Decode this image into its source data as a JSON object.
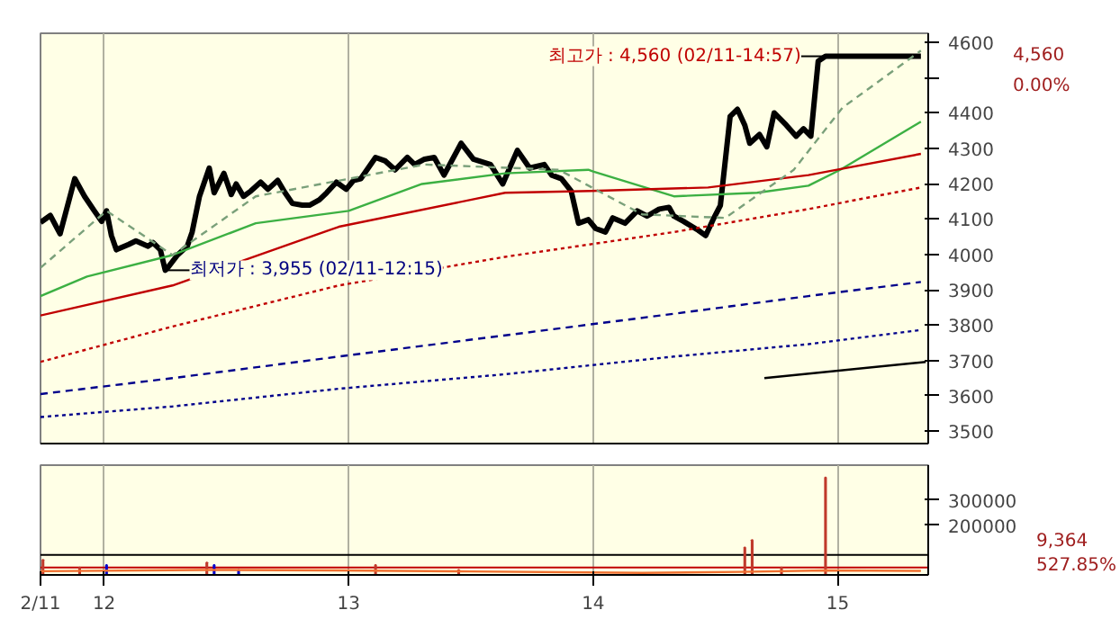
{
  "chart_data": [
    {
      "type": "line",
      "xlim": [
        11.74,
        15.37
      ],
      "ylim": [
        3465,
        4625
      ],
      "tick_labels": "y",
      "grid": "x",
      "xticks": [
        12,
        13,
        14,
        15
      ],
      "yticks": [
        3500,
        3600,
        3700,
        3800,
        3900,
        4000,
        4100,
        4200,
        4300,
        4400,
        {
          "value": 4500,
          "label": null
        },
        4600
      ],
      "series": [
        {
          "color": "#000000",
          "line_style": "solid",
          "x": [
            11.74,
            11.78,
            11.82,
            11.88,
            11.92,
            11.96,
            11.99,
            12.01,
            12.03,
            12.05,
            12.1,
            12.13,
            12.18,
            12.2,
            12.23,
            12.25,
            12.26,
            12.3,
            12.34,
            12.36,
            12.39,
            12.43,
            12.45,
            12.49,
            12.52,
            12.54,
            12.57,
            12.6,
            12.64,
            12.67,
            12.71,
            12.74,
            12.77,
            12.81,
            12.84,
            12.88,
            12.91,
            12.95,
            12.99,
            13.02,
            13.05,
            13.11,
            13.15,
            13.19,
            13.24,
            13.27,
            13.31,
            13.35,
            13.39,
            13.46,
            13.51,
            13.58,
            13.63,
            13.69,
            13.74,
            13.8,
            13.83,
            13.87,
            13.91,
            13.94,
            13.98,
            14.01,
            14.05,
            14.08,
            14.13,
            14.18,
            14.22,
            14.27,
            14.31,
            14.33,
            14.37,
            14.43,
            14.46,
            14.49,
            14.52,
            14.56,
            14.59,
            14.62,
            14.64,
            14.68,
            14.71,
            14.74,
            14.79,
            14.83,
            14.86,
            14.89,
            14.92,
            14.95,
            15.34
          ],
          "values": [
            4090,
            4110,
            4058,
            4214,
            4164,
            4123,
            4093,
            4123,
            4053,
            4013,
            4028,
            4038,
            4023,
            4033,
            4013,
            3955,
            3962,
            3998,
            4023,
            4063,
            4164,
            4244,
            4174,
            4229,
            4169,
            4199,
            4164,
            4179,
            4204,
            4184,
            4209,
            4174,
            4144,
            4139,
            4139,
            4154,
            4174,
            4204,
            4184,
            4209,
            4214,
            4274,
            4264,
            4239,
            4274,
            4254,
            4269,
            4274,
            4224,
            4314,
            4269,
            4254,
            4199,
            4294,
            4244,
            4254,
            4224,
            4214,
            4179,
            4088,
            4098,
            4073,
            4063,
            4103,
            4088,
            4123,
            4108,
            4128,
            4133,
            4108,
            4093,
            4068,
            4053,
            4098,
            4138,
            4390,
            4410,
            4365,
            4314,
            4339,
            4304,
            4400,
            4365,
            4334,
            4355,
            4334,
            4546,
            4560,
            4560
          ]
        },
        {
          "color": "#3cb043",
          "line_style": "solid",
          "x": [
            11.74,
            11.93,
            12.28,
            12.62,
            13.0,
            13.3,
            13.64,
            13.98,
            14.0,
            14.33,
            14.67,
            14.88,
            15.01,
            15.34
          ],
          "values": [
            3882,
            3937,
            3998,
            4088,
            4123,
            4199,
            4229,
            4239,
            4234,
            4164,
            4174,
            4194,
            4239,
            4375
          ]
        },
        {
          "color": "#c00000",
          "line_style": "solid",
          "x": [
            11.74,
            12.28,
            12.96,
            13.64,
            13.99,
            14.47,
            14.88,
            15.34
          ],
          "values": [
            3827,
            3912,
            4078,
            4174,
            4179,
            4189,
            4224,
            4284
          ]
        },
        {
          "color": "#c00000",
          "line_style": "dotted",
          "x": [
            11.74,
            12.28,
            12.96,
            13.64,
            14.33,
            14.88,
            15.34
          ],
          "values": [
            3696,
            3796,
            3912,
            3993,
            4063,
            4128,
            4189
          ]
        },
        {
          "color": "#00008b",
          "line_style": "dashed",
          "x": [
            11.74,
            12.28,
            12.96,
            13.64,
            14.33,
            14.88,
            15.34
          ],
          "values": [
            3605,
            3650,
            3711,
            3771,
            3832,
            3882,
            3922
          ]
        },
        {
          "color": "#00008b",
          "line_style": "dotted",
          "x": [
            11.74,
            12.28,
            12.96,
            13.64,
            14.33,
            14.88,
            15.34
          ],
          "values": [
            3540,
            3570,
            3620,
            3661,
            3711,
            3746,
            3786
          ]
        },
        {
          "color": "#7aa07a",
          "line_style": "dashed",
          "x": [
            11.74,
            12.01,
            12.28,
            12.62,
            13.31,
            13.86,
            14.2,
            14.54,
            14.82,
            15.02,
            15.34
          ],
          "values": [
            3962,
            4123,
            3998,
            4164,
            4254,
            4239,
            4113,
            4103,
            4239,
            4415,
            4576
          ]
        },
        {
          "color": "#000000",
          "line_style": "solid",
          "x": [
            14.7,
            15.36
          ],
          "values": [
            3650,
            3696
          ]
        }
      ],
      "annotations": [
        {
          "text": "최고가 : 4,560 (02/11-14:57)",
          "x": 14.95,
          "y": 4560
        },
        {
          "text": "최저가 : 3,955 (02/11-12:15)",
          "x": 12.25,
          "y": 3955
        },
        "4,560",
        "0.00%"
      ]
    },
    {
      "type": "bar",
      "xlim": [
        11.74,
        15.37
      ],
      "ylim": [
        0,
        440000
      ],
      "grid": "x",
      "xticks": [
        {
          "value": 11.74,
          "label": "2/11"
        },
        12,
        13,
        14,
        15
      ],
      "yticks": [
        200000,
        300000
      ],
      "series": [
        {
          "type": "bar",
          "x": [
            11.75,
            11.9,
            12.01,
            12.42,
            12.45,
            12.55,
            13.11,
            13.45,
            14.62,
            14.65,
            14.77,
            14.95
          ],
          "values": [
            60000,
            30000,
            40000,
            50000,
            40000,
            20000,
            40000,
            20000,
            110000,
            140000,
            30000,
            390000
          ],
          "colors": [
            "#c0392b",
            "#c0392b",
            "#0000cc",
            "#c0392b",
            "#0000cc",
            "#0000cc",
            "#c0392b",
            "#c0392b",
            "#c0392b",
            "#c0392b",
            "#c0392b",
            "#c0392b"
          ]
        },
        {
          "type": "line",
          "color": "#f07030",
          "x": [
            11.74,
            12.4,
            12.95,
            13.5,
            14.2,
            14.6,
            14.95,
            15.34
          ],
          "values": [
            15000,
            20000,
            18000,
            14000,
            8000,
            12000,
            18000,
            16000
          ]
        }
      ],
      "ref_lines": [
        {
          "axis": "y",
          "value": 80000,
          "color": "#000000"
        },
        {
          "axis": "y",
          "value": 30000,
          "color": "#c00000"
        }
      ],
      "annotations": [
        "9,364",
        "527.85%"
      ]
    }
  ]
}
